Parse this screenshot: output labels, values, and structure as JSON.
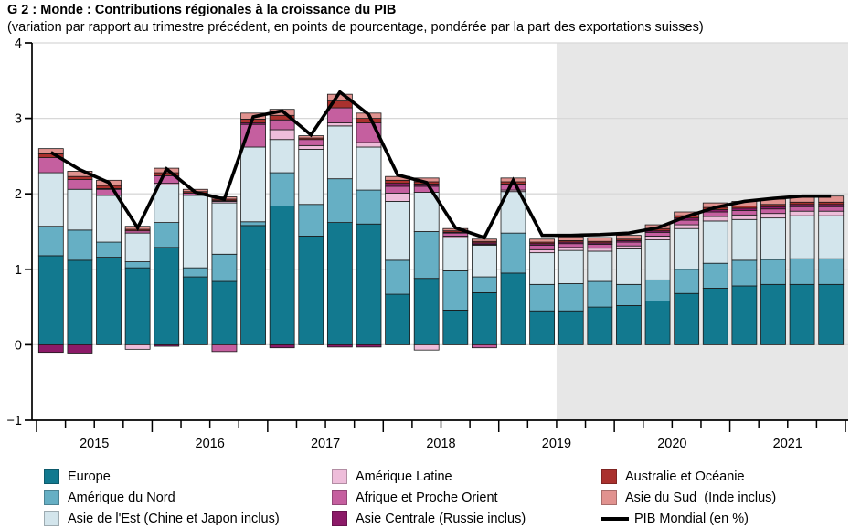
{
  "header": {
    "title": "G 2 : Monde : Contributions régionales à la croissance du PIB",
    "subtitle": "(variation par rapport au trimestre précédent, en points de pourcentage, pondérée par la part des exportations suisses)"
  },
  "chart_data": {
    "type": "bar",
    "stacked": true,
    "title": "G 2 : Monde : Contributions régionales à la croissance du PIB",
    "subtitle": "(variation par rapport au trimestre précédent, en points de pourcentage, pondérée par la part des exportations suisses)",
    "grid": "horizontal",
    "ylim": [
      -1,
      4
    ],
    "yticks": [
      -1,
      0,
      1,
      2,
      3,
      4
    ],
    "ytick_labels": [
      "−1",
      "0",
      "1",
      "2",
      "3",
      "4"
    ],
    "year_labels": [
      "2015",
      "2016",
      "2017",
      "2018",
      "2019",
      "2020",
      "2021"
    ],
    "quarters_per_year": 4,
    "forecast": {
      "start_index": 18,
      "fill": "#e7e7e7",
      "note": "zone grisée = prévisions dès 2019 T3"
    },
    "categories": [
      "2015 T1",
      "2015 T2",
      "2015 T3",
      "2015 T4",
      "2016 T1",
      "2016 T2",
      "2016 T3",
      "2016 T4",
      "2017 T1",
      "2017 T2",
      "2017 T3",
      "2017 T4",
      "2018 T1",
      "2018 T2",
      "2018 T3",
      "2018 T4",
      "2019 T1",
      "2019 T2",
      "2019 T3",
      "2019 T4",
      "2020 T1",
      "2020 T2",
      "2020 T3",
      "2020 T4",
      "2021 T1",
      "2021 T2",
      "2021 T3",
      "2021 T4"
    ],
    "series": [
      {
        "key": "europe",
        "name": "Europe",
        "color": "#12798f",
        "values": [
          1.18,
          1.12,
          1.16,
          1.02,
          1.29,
          0.9,
          0.84,
          1.58,
          1.84,
          1.44,
          1.62,
          1.6,
          0.67,
          0.88,
          0.46,
          0.69,
          0.95,
          0.45,
          0.45,
          0.5,
          0.52,
          0.58,
          0.68,
          0.75,
          0.78,
          0.8,
          0.8,
          0.8
        ]
      },
      {
        "key": "amerique-du-nord",
        "name": "Amérique du Nord",
        "color": "#66afc4",
        "values": [
          0.39,
          0.4,
          0.2,
          0.08,
          0.33,
          0.12,
          0.36,
          0.05,
          0.44,
          0.42,
          0.58,
          0.45,
          0.45,
          0.62,
          0.52,
          0.21,
          0.53,
          0.35,
          0.36,
          0.34,
          0.28,
          0.28,
          0.32,
          0.33,
          0.34,
          0.33,
          0.34,
          0.34
        ]
      },
      {
        "key": "asie-de-l-est",
        "name": "Asie de l'Est (Chine et Japon inclus)",
        "color": "#d3e5ec",
        "values": [
          0.71,
          0.54,
          0.62,
          0.38,
          0.5,
          0.96,
          0.68,
          0.99,
          0.44,
          0.73,
          0.7,
          0.57,
          0.78,
          0.52,
          0.44,
          0.42,
          0.55,
          0.42,
          0.44,
          0.4,
          0.47,
          0.53,
          0.54,
          0.56,
          0.54,
          0.55,
          0.57,
          0.57
        ]
      },
      {
        "key": "amerique-latine",
        "name": "Amérique Latine",
        "color": "#eebdda",
        "values": [
          0.0,
          0.0,
          0.0,
          -0.06,
          0.02,
          0.0,
          0.02,
          0.0,
          0.13,
          0.05,
          0.04,
          0.06,
          0.11,
          -0.07,
          0.02,
          0.01,
          0.02,
          0.04,
          0.04,
          0.04,
          0.04,
          0.05,
          0.05,
          0.06,
          0.06,
          0.06,
          0.06,
          0.06
        ]
      },
      {
        "key": "afrique-proche-orient",
        "name": "Afrique et Proche Orient",
        "color": "#c55f9f",
        "values": [
          0.2,
          0.13,
          0.08,
          0.03,
          0.1,
          0.03,
          -0.09,
          0.3,
          0.13,
          0.08,
          0.2,
          0.26,
          0.09,
          0.08,
          0.04,
          -0.04,
          0.07,
          0.06,
          0.05,
          0.05,
          0.05,
          0.05,
          0.06,
          0.06,
          0.06,
          0.06,
          0.06,
          0.06
        ]
      },
      {
        "key": "asie-centrale",
        "name": "Asie Centrale (Russie inclus)",
        "color": "#8c1a68",
        "values": [
          -0.1,
          -0.11,
          0.01,
          0.0,
          -0.02,
          0.0,
          0.01,
          0.02,
          -0.04,
          0.0,
          -0.03,
          -0.03,
          0.04,
          0.03,
          0.01,
          0.02,
          0.01,
          0.02,
          0.02,
          0.02,
          0.02,
          0.02,
          0.03,
          0.03,
          0.03,
          0.03,
          0.03,
          0.03
        ]
      },
      {
        "key": "australie-oceanie",
        "name": "Australie et Océanie",
        "color": "#aa312e",
        "values": [
          0.05,
          0.04,
          0.04,
          0.02,
          0.04,
          0.02,
          0.02,
          0.05,
          0.06,
          0.02,
          0.09,
          0.06,
          0.04,
          0.03,
          0.02,
          0.02,
          0.03,
          0.02,
          0.02,
          0.02,
          0.02,
          0.03,
          0.03,
          0.03,
          0.03,
          0.03,
          0.03,
          0.03
        ]
      },
      {
        "key": "asie-du-sud",
        "name": "Asie du Sud  (Inde inclus)",
        "color": "#e1928f",
        "values": [
          0.07,
          0.07,
          0.07,
          0.04,
          0.06,
          0.03,
          0.03,
          0.08,
          0.08,
          0.03,
          0.09,
          0.07,
          0.05,
          0.05,
          0.03,
          0.03,
          0.05,
          0.04,
          0.05,
          0.05,
          0.05,
          0.05,
          0.05,
          0.06,
          0.06,
          0.07,
          0.08,
          0.08
        ]
      }
    ],
    "line_series": {
      "key": "pib-mondial",
      "name": "PIB Mondial (en %)",
      "color": "#000000",
      "values": [
        2.55,
        2.32,
        2.15,
        1.55,
        2.33,
        2.02,
        1.93,
        3.02,
        3.1,
        2.78,
        3.35,
        3.05,
        2.25,
        2.15,
        1.55,
        1.42,
        2.18,
        1.45,
        1.45,
        1.46,
        1.48,
        1.55,
        1.7,
        1.82,
        1.9,
        1.94,
        1.97,
        1.97
      ]
    },
    "colors": {
      "axis": "#000000",
      "gridline": "#d8d8d8",
      "segment_stroke": "#1a1a1a"
    },
    "legend_position": "bottom"
  },
  "legend": {
    "columns": [
      [
        {
          "type": "swatch",
          "key": "europe",
          "color": "#12798f",
          "label": "Europe"
        },
        {
          "type": "swatch",
          "key": "amerique-du-nord",
          "color": "#66afc4",
          "label": "Amérique du Nord"
        },
        {
          "type": "swatch",
          "key": "asie-de-l-est",
          "color": "#d3e5ec",
          "label": "Asie de l'Est (Chine et Japon inclus)"
        }
      ],
      [
        {
          "type": "swatch",
          "key": "amerique-latine",
          "color": "#eebdda",
          "label": "Amérique Latine"
        },
        {
          "type": "swatch",
          "key": "afrique-proche-orient",
          "color": "#c55f9f",
          "label": "Afrique et Proche Orient"
        },
        {
          "type": "swatch",
          "key": "asie-centrale",
          "color": "#8c1a68",
          "label": "Asie Centrale (Russie inclus)"
        }
      ],
      [
        {
          "type": "swatch",
          "key": "australie-oceanie",
          "color": "#aa312e",
          "label": "Australie et Océanie"
        },
        {
          "type": "swatch",
          "key": "asie-du-sud",
          "color": "#e1928f",
          "label": "Asie du Sud  (Inde inclus)"
        },
        {
          "type": "line",
          "key": "pib-mondial",
          "color": "#000000",
          "label": "PIB Mondial (en %)"
        }
      ]
    ]
  }
}
